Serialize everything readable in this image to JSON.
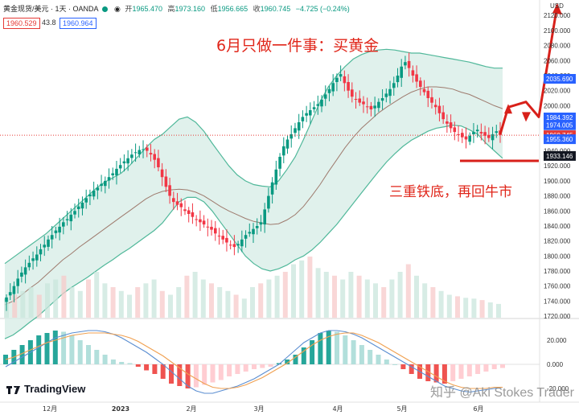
{
  "header": {
    "symbol": "黄金现货/美元 · 1天 · OANDA",
    "open_label": "开",
    "open_value": "1965.470",
    "high_label": "高",
    "high_value": "1973.160",
    "low_label": "低",
    "low_value": "1956.665",
    "close_label": "收",
    "close_value": "1960.745",
    "change": "−4.725 (−0.24%)"
  },
  "quote": {
    "bid": "1960.529",
    "spread": "43.8",
    "ask": "1960.964"
  },
  "annotations": {
    "title": "6月只做一件事：买黄金",
    "subtitle": "三重铁底，再回牛市"
  },
  "branding": {
    "logo": "TradingView",
    "watermark": "知乎 @Aki Stokes Trader"
  },
  "colors": {
    "up": "#089981",
    "down": "#f23645",
    "band_fill": "#d5ece6",
    "band_line": "#50b89a",
    "mid_line": "#9e7b6e",
    "arrow": "#d8201a",
    "macd_line": "#5b8ed1",
    "signal_line": "#f0a050"
  },
  "chart_data": [
    {
      "type": "candlestick",
      "title": "",
      "currency": "USD",
      "x_ticks": [
        "12月",
        "2023",
        "2月",
        "3月",
        "4月",
        "5月",
        "6月"
      ],
      "y_ticks": [
        1720,
        1740,
        1760,
        1780,
        1800,
        1820,
        1840,
        1860,
        1880,
        1900,
        1920,
        1940,
        1960,
        1980,
        2000,
        2020,
        2040,
        2060,
        2080,
        2100,
        2120
      ],
      "ylim": [
        1718,
        2132
      ],
      "closes": [
        1745,
        1752,
        1760,
        1770,
        1778,
        1785,
        1791,
        1797,
        1802,
        1809,
        1815,
        1822,
        1828,
        1834,
        1839,
        1845,
        1849,
        1855,
        1860,
        1866,
        1871,
        1877,
        1882,
        1887,
        1891,
        1896,
        1900,
        1905,
        1910,
        1916,
        1921,
        1926,
        1930,
        1935,
        1938,
        1941,
        1942,
        1940,
        1935,
        1928,
        1918,
        1905,
        1892,
        1880,
        1872,
        1868,
        1865,
        1860,
        1856,
        1852,
        1848,
        1845,
        1842,
        1838,
        1835,
        1830,
        1826,
        1822,
        1818,
        1815,
        1812,
        1816,
        1822,
        1828,
        1832,
        1836,
        1840,
        1845,
        1862,
        1880,
        1898,
        1915,
        1932,
        1946,
        1955,
        1962,
        1970,
        1978,
        1985,
        1990,
        1994,
        1998,
        2002,
        2008,
        2015,
        2022,
        2030,
        2037,
        2042,
        2030,
        2020,
        2012,
        2008,
        2004,
        2002,
        1998,
        1995,
        2000,
        2005,
        2010,
        2016,
        2022,
        2030,
        2040,
        2052,
        2058,
        2050,
        2040,
        2032,
        2025,
        2018,
        2010,
        2004,
        1998,
        1990,
        1982,
        1976,
        1970,
        1965,
        1962,
        1958,
        1955,
        1960,
        1965,
        1968,
        1963,
        1960,
        1957,
        1962,
        1966,
        1961
      ],
      "bollinger_upper": [
        1790,
        1798,
        1806,
        1814,
        1822,
        1830,
        1840,
        1850,
        1860,
        1870,
        1880,
        1890,
        1898,
        1904,
        1910,
        1920,
        1932,
        1944,
        1955,
        1962,
        1972,
        1982,
        1985,
        1978,
        1966,
        1950,
        1935,
        1920,
        1908,
        1900,
        1895,
        1893,
        1892,
        1900,
        1915,
        1932,
        1955,
        1980,
        2005,
        2025,
        2040,
        2052,
        2062,
        2068,
        2072,
        2074,
        2075,
        2074,
        2072,
        2070,
        2070,
        2068,
        2066,
        2064,
        2062,
        2060,
        2058,
        2055,
        2052,
        2050,
        2050
      ],
      "bollinger_middle": [
        1735,
        1740,
        1748,
        1757,
        1765,
        1775,
        1785,
        1795,
        1803,
        1812,
        1820,
        1828,
        1836,
        1844,
        1852,
        1860,
        1868,
        1876,
        1882,
        1886,
        1888,
        1889,
        1888,
        1885,
        1880,
        1873,
        1866,
        1860,
        1855,
        1850,
        1846,
        1844,
        1842,
        1843,
        1848,
        1855,
        1866,
        1880,
        1895,
        1912,
        1928,
        1944,
        1958,
        1970,
        1980,
        1990,
        1998,
        2005,
        2012,
        2018,
        2022,
        2025,
        2025,
        2024,
        2022,
        2018,
        2015,
        2010,
        2005,
        2000,
        1996
      ],
      "bollinger_lower": [
        1690,
        1695,
        1703,
        1712,
        1720,
        1730,
        1740,
        1750,
        1758,
        1765,
        1772,
        1780,
        1788,
        1795,
        1803,
        1810,
        1818,
        1826,
        1834,
        1844,
        1858,
        1872,
        1878,
        1878,
        1872,
        1860,
        1845,
        1830,
        1815,
        1800,
        1790,
        1783,
        1780,
        1783,
        1788,
        1795,
        1800,
        1808,
        1818,
        1830,
        1842,
        1856,
        1870,
        1884,
        1898,
        1912,
        1925,
        1936,
        1946,
        1954,
        1960,
        1966,
        1970,
        1972,
        1974,
        1973,
        1968,
        1962,
        1950,
        1940,
        1930
      ],
      "price_labels": [
        "2035.690",
        "1984.392",
        "1974.005",
        "1960.745",
        "1955.360",
        "1933.146"
      ],
      "support_level": 1933,
      "projection_path": [
        1962,
        1998,
        2005,
        1985,
        2134
      ]
    },
    {
      "type": "bar",
      "title": "",
      "note": "volume",
      "heights": [
        0.25,
        0.3,
        0.35,
        0.4,
        0.3,
        0.45,
        0.5,
        0.55,
        0.4,
        0.35,
        0.5,
        0.6,
        0.45,
        0.4,
        0.35,
        0.3,
        0.4,
        0.45,
        0.5,
        0.35,
        0.3,
        0.4,
        0.55,
        0.6,
        0.5,
        0.45,
        0.4,
        0.35,
        0.3,
        0.25,
        0.4,
        0.45,
        0.5,
        0.55,
        0.6,
        0.7,
        0.75,
        0.8,
        0.65,
        0.6,
        0.55,
        0.5,
        0.6,
        0.55,
        0.5,
        0.45,
        0.4,
        0.5,
        0.6,
        0.7,
        0.55,
        0.45,
        0.4,
        0.35,
        0.3,
        0.28,
        0.26,
        0.25,
        0.23,
        0.2,
        0.18
      ]
    },
    {
      "type": "bar",
      "title": "",
      "note": "MACD histogram",
      "y_ticks": [
        "20.000",
        "0.000",
        "-20.000"
      ],
      "ylim": [
        -28,
        32
      ],
      "histogram": [
        8,
        12,
        16,
        20,
        24,
        26,
        28,
        27,
        24,
        20,
        16,
        12,
        8,
        4,
        2,
        1,
        -2,
        -5,
        -8,
        -12,
        -16,
        -18,
        -20,
        -19,
        -17,
        -15,
        -13,
        -10,
        -8,
        -6,
        -4,
        -3,
        -2,
        1,
        4,
        8,
        14,
        20,
        26,
        28,
        27,
        24,
        20,
        16,
        12,
        8,
        4,
        0,
        -4,
        -8,
        -12,
        -14,
        -15,
        -16,
        -14,
        -12,
        -10,
        -8,
        -6,
        -4,
        -3
      ],
      "macd_line": [
        -2,
        2,
        6,
        10,
        14,
        18,
        22,
        24,
        26,
        27,
        28,
        28,
        27,
        25,
        22,
        18,
        14,
        10,
        5,
        0,
        -6,
        -12,
        -18,
        -22,
        -24,
        -24,
        -22,
        -20,
        -18,
        -15,
        -12,
        -8,
        -4,
        0,
        6,
        12,
        18,
        22,
        26,
        28,
        28,
        27,
        25,
        22,
        18,
        14,
        10,
        6,
        2,
        -2,
        -6,
        -10,
        -14,
        -18,
        -20,
        -22,
        -23,
        -22,
        -21,
        -20,
        -19
      ],
      "signal_line": [
        4,
        6,
        9,
        12,
        15,
        18,
        20,
        22,
        24,
        25,
        26,
        26,
        26,
        25,
        24,
        22,
        19,
        15,
        11,
        7,
        2,
        -3,
        -8,
        -12,
        -16,
        -19,
        -20,
        -20,
        -19,
        -17,
        -14,
        -11,
        -7,
        -3,
        1,
        6,
        11,
        16,
        20,
        23,
        25,
        26,
        26,
        24,
        21,
        18,
        14,
        10,
        6,
        2,
        -2,
        -6,
        -10,
        -14,
        -17,
        -19,
        -20,
        -20,
        -20,
        -19,
        -19
      ]
    }
  ]
}
